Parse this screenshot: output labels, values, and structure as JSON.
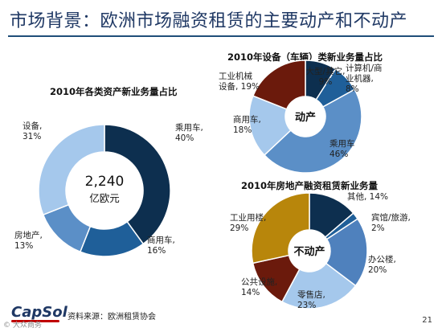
{
  "page": {
    "title": "市场背景：欧洲市场融资租赁的主要动产和不动产",
    "source": "资料来源：欧洲租赁协会",
    "page_number": "21",
    "logo": "CapSol",
    "watermark": "© 大众商务"
  },
  "chart_data": [
    {
      "type": "pie",
      "title": "2010年各类资产新业务量占比",
      "center": [
        "2,240",
        "亿欧元"
      ],
      "slices": [
        {
          "label": [
            "乘用车,",
            "40%"
          ],
          "value": 40,
          "color": "#0d2f4f"
        },
        {
          "label": [
            "商用车,",
            "16%"
          ],
          "value": 16,
          "color": "#1f5f99"
        },
        {
          "label": [
            "房地产,",
            "13%"
          ],
          "value": 13,
          "color": "#5b8fc7"
        },
        {
          "label": [
            "设备,",
            "31%"
          ],
          "value": 31,
          "color": "#a5c8ec"
        }
      ]
    },
    {
      "type": "pie",
      "title": "2010年设备（车辆）类新业务量占比",
      "center": [
        "动产"
      ],
      "slices": [
        {
          "label": [
            "大型/其它,",
            "9%"
          ],
          "value": 9,
          "color": "#0d2f4f"
        },
        {
          "label": [
            "计算机/商",
            "业机器,",
            "8%"
          ],
          "value": 8,
          "color": "#1f5f99"
        },
        {
          "label": [
            "乘用车",
            "46%"
          ],
          "value": 46,
          "color": "#5b8fc7"
        },
        {
          "label": [
            "商用车,",
            "18%"
          ],
          "value": 18,
          "color": "#a5c8ec"
        },
        {
          "label": [
            "工业机械",
            "设备, 19%"
          ],
          "value": 19,
          "color": "#6b1a0c"
        }
      ]
    },
    {
      "type": "pie",
      "title": "2010年房地产融资租赁新业务量",
      "center": [
        "不动产"
      ],
      "slices": [
        {
          "label": [
            "其他, 14%"
          ],
          "value": 14,
          "color": "#0d2f4f"
        },
        {
          "label": [
            "宾馆/旅游,",
            "2%"
          ],
          "value": 2,
          "color": "#1f5f99"
        },
        {
          "label": [
            "办公楼,",
            "20%"
          ],
          "value": 20,
          "color": "#4f81bd"
        },
        {
          "label": [
            "零售店,",
            "23%"
          ],
          "value": 23,
          "color": "#a5c8ec"
        },
        {
          "label": [
            "公共设施,",
            "14%"
          ],
          "value": 14,
          "color": "#6b1a0c"
        },
        {
          "label": [
            "工业用楼,",
            "29%"
          ],
          "value": 29,
          "color": "#b8860b"
        }
      ]
    }
  ]
}
